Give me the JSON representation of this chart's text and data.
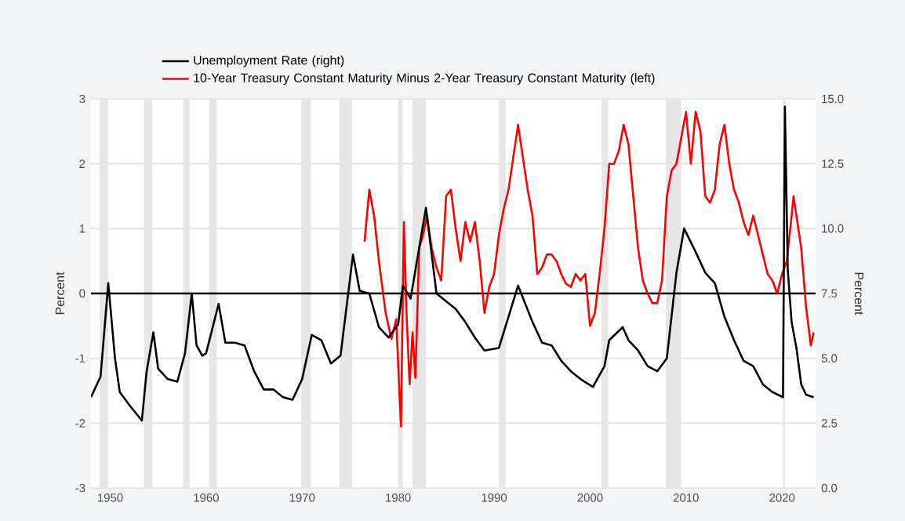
{
  "chart_data": {
    "type": "line",
    "ylabel": "Percent",
    "y2label": "Percent",
    "xlim": [
      1948,
      2023.5
    ],
    "xticks": [
      1950,
      1960,
      1970,
      1980,
      1990,
      2000,
      2010,
      2020
    ],
    "ylim": [
      -3,
      3
    ],
    "yticks": [
      -3,
      -2,
      -1,
      0,
      1,
      2,
      3
    ],
    "y2lim": [
      0,
      15
    ],
    "y2ticks": [
      {
        "value": 0,
        "label": "0.0"
      },
      2.5,
      {
        "value": 5,
        "label": "5.0"
      },
      7.5,
      {
        "value": 10,
        "label": "10.0"
      },
      12.5,
      {
        "value": 15,
        "label": "15.0"
      }
    ],
    "grid": "y",
    "legend": "top",
    "marker": "none",
    "line_style": "solid",
    "series": [
      {
        "name": "Unemployment Rate (right)",
        "color": "#000000",
        "axis": "y2",
        "x": [
          1948.0,
          1949.0,
          1949.8,
          1950.5,
          1951.0,
          1952.0,
          1953.3,
          1953.8,
          1954.5,
          1955.0,
          1956.0,
          1957.0,
          1957.8,
          1958.5,
          1959.0,
          1959.6,
          1960.0,
          1961.3,
          1962.0,
          1963.0,
          1964.0,
          1965.0,
          1966.0,
          1967.0,
          1968.0,
          1969.0,
          1970.0,
          1971.0,
          1972.0,
          1973.0,
          1974.0,
          1975.3,
          1976.0,
          1977.0,
          1978.0,
          1979.0,
          1980.0,
          1980.5,
          1981.3,
          1982.9,
          1984.0,
          1985.0,
          1986.0,
          1987.0,
          1988.0,
          1989.0,
          1990.5,
          1992.5,
          1994.0,
          1995.0,
          1996.0,
          1997.0,
          1998.0,
          1999.0,
          2000.3,
          2001.5,
          2002.0,
          2003.4,
          2004.0,
          2005.0,
          2006.0,
          2007.0,
          2008.0,
          2009.0,
          2009.8,
          2011.0,
          2012.0,
          2013.0,
          2014.0,
          2015.0,
          2016.0,
          2017.0,
          2018.0,
          2019.0,
          2020.1,
          2020.3,
          2020.6,
          2021.0,
          2021.5,
          2022.0,
          2022.5,
          2023.3
        ],
        "values": [
          3.5,
          4.3,
          7.9,
          5.0,
          3.7,
          3.2,
          2.6,
          4.5,
          6.0,
          4.6,
          4.2,
          4.1,
          5.2,
          7.5,
          5.5,
          5.1,
          5.2,
          7.1,
          5.6,
          5.6,
          5.5,
          4.5,
          3.8,
          3.8,
          3.5,
          3.4,
          4.2,
          5.9,
          5.7,
          4.8,
          5.1,
          9.0,
          7.6,
          7.5,
          6.2,
          5.8,
          6.3,
          7.8,
          7.3,
          10.8,
          7.5,
          7.2,
          6.9,
          6.4,
          5.8,
          5.3,
          5.4,
          7.8,
          6.4,
          5.6,
          5.5,
          4.9,
          4.5,
          4.2,
          3.9,
          4.7,
          5.7,
          6.2,
          5.7,
          5.3,
          4.7,
          4.5,
          5.0,
          8.3,
          10.0,
          9.1,
          8.3,
          7.9,
          6.6,
          5.7,
          4.9,
          4.7,
          4.0,
          3.7,
          3.5,
          14.7,
          8.4,
          6.4,
          5.4,
          4.0,
          3.6,
          3.5
        ]
      },
      {
        "name": "10-Year Treasury Constant Maturity Minus 2-Year Treasury Constant Maturity (left)",
        "color": "#ff0000",
        "x": [
          1976.5,
          1977.0,
          1977.5,
          1978.0,
          1978.7,
          1979.3,
          1979.8,
          1980.1,
          1980.3,
          1980.6,
          1980.9,
          1981.2,
          1981.5,
          1981.8,
          1982.2,
          1982.6,
          1983.0,
          1983.5,
          1984.0,
          1984.5,
          1985.0,
          1985.5,
          1986.0,
          1986.5,
          1987.0,
          1987.5,
          1988.0,
          1988.5,
          1989.0,
          1989.5,
          1990.0,
          1990.5,
          1991.0,
          1991.5,
          1992.0,
          1992.5,
          1993.0,
          1993.5,
          1994.0,
          1994.5,
          1995.0,
          1995.5,
          1996.0,
          1996.5,
          1997.0,
          1997.5,
          1998.0,
          1998.5,
          1999.0,
          1999.5,
          2000.0,
          2000.5,
          2001.0,
          2001.5,
          2002.0,
          2002.5,
          2003.0,
          2003.5,
          2004.0,
          2004.5,
          2005.0,
          2005.5,
          2006.0,
          2006.5,
          2007.0,
          2007.5,
          2008.0,
          2008.5,
          2009.0,
          2009.5,
          2010.0,
          2010.5,
          2011.0,
          2011.5,
          2012.0,
          2012.5,
          2013.0,
          2013.5,
          2014.0,
          2014.5,
          2015.0,
          2015.5,
          2016.0,
          2016.5,
          2017.0,
          2017.5,
          2018.0,
          2018.5,
          2019.0,
          2019.5,
          2020.0,
          2020.5,
          2021.0,
          2021.2,
          2021.5,
          2022.0,
          2022.5,
          2023.0,
          2023.3
        ],
        "values": [
          0.8,
          1.6,
          1.2,
          0.5,
          -0.3,
          -0.7,
          -0.4,
          -1.4,
          -2.05,
          1.1,
          -0.4,
          -1.4,
          -0.6,
          -1.3,
          0.7,
          0.9,
          1.2,
          0.7,
          0.4,
          0.2,
          1.5,
          1.6,
          1.0,
          0.5,
          1.1,
          0.8,
          1.1,
          0.5,
          -0.3,
          0.1,
          0.3,
          0.9,
          1.3,
          1.6,
          2.1,
          2.6,
          2.1,
          1.6,
          1.2,
          0.3,
          0.4,
          0.6,
          0.6,
          0.5,
          0.3,
          0.15,
          0.1,
          0.3,
          0.2,
          0.3,
          -0.5,
          -0.3,
          0.3,
          1.0,
          2.0,
          2.0,
          2.2,
          2.6,
          2.3,
          1.5,
          0.7,
          0.2,
          0.0,
          -0.15,
          -0.15,
          0.2,
          1.5,
          1.9,
          2.0,
          2.4,
          2.8,
          2.0,
          2.8,
          2.5,
          1.5,
          1.4,
          1.6,
          2.3,
          2.6,
          2.0,
          1.6,
          1.4,
          1.1,
          0.9,
          1.2,
          0.9,
          0.6,
          0.3,
          0.2,
          0.0,
          0.3,
          0.5,
          1.2,
          1.5,
          1.2,
          0.7,
          -0.2,
          -0.8,
          -0.6
        ]
      }
    ],
    "ref_lines": [
      {
        "axis": "y",
        "value": 0,
        "color": "#000000"
      }
    ],
    "bands": [
      {
        "axis": "x",
        "from": 1948.9,
        "to": 1949.8,
        "color": "#e6e6e6"
      },
      {
        "axis": "x",
        "from": 1953.5,
        "to": 1954.4,
        "color": "#e6e6e6"
      },
      {
        "axis": "x",
        "from": 1957.6,
        "to": 1958.3,
        "color": "#e6e6e6"
      },
      {
        "axis": "x",
        "from": 1960.3,
        "to": 1961.1,
        "color": "#e6e6e6"
      },
      {
        "axis": "x",
        "from": 1969.9,
        "to": 1970.9,
        "color": "#e6e6e6"
      },
      {
        "axis": "x",
        "from": 1973.9,
        "to": 1975.2,
        "color": "#e6e6e6"
      },
      {
        "axis": "x",
        "from": 1980.0,
        "to": 1980.5,
        "color": "#e6e6e6"
      },
      {
        "axis": "x",
        "from": 1981.5,
        "to": 1982.9,
        "color": "#e6e6e6"
      },
      {
        "axis": "x",
        "from": 1990.5,
        "to": 1991.2,
        "color": "#e6e6e6"
      },
      {
        "axis": "x",
        "from": 2001.2,
        "to": 2001.9,
        "color": "#e6e6e6"
      },
      {
        "axis": "x",
        "from": 2007.9,
        "to": 2009.5,
        "color": "#e6e6e6"
      },
      {
        "axis": "x",
        "from": 2020.1,
        "to": 2020.3,
        "color": "#e6e6e6"
      }
    ]
  }
}
